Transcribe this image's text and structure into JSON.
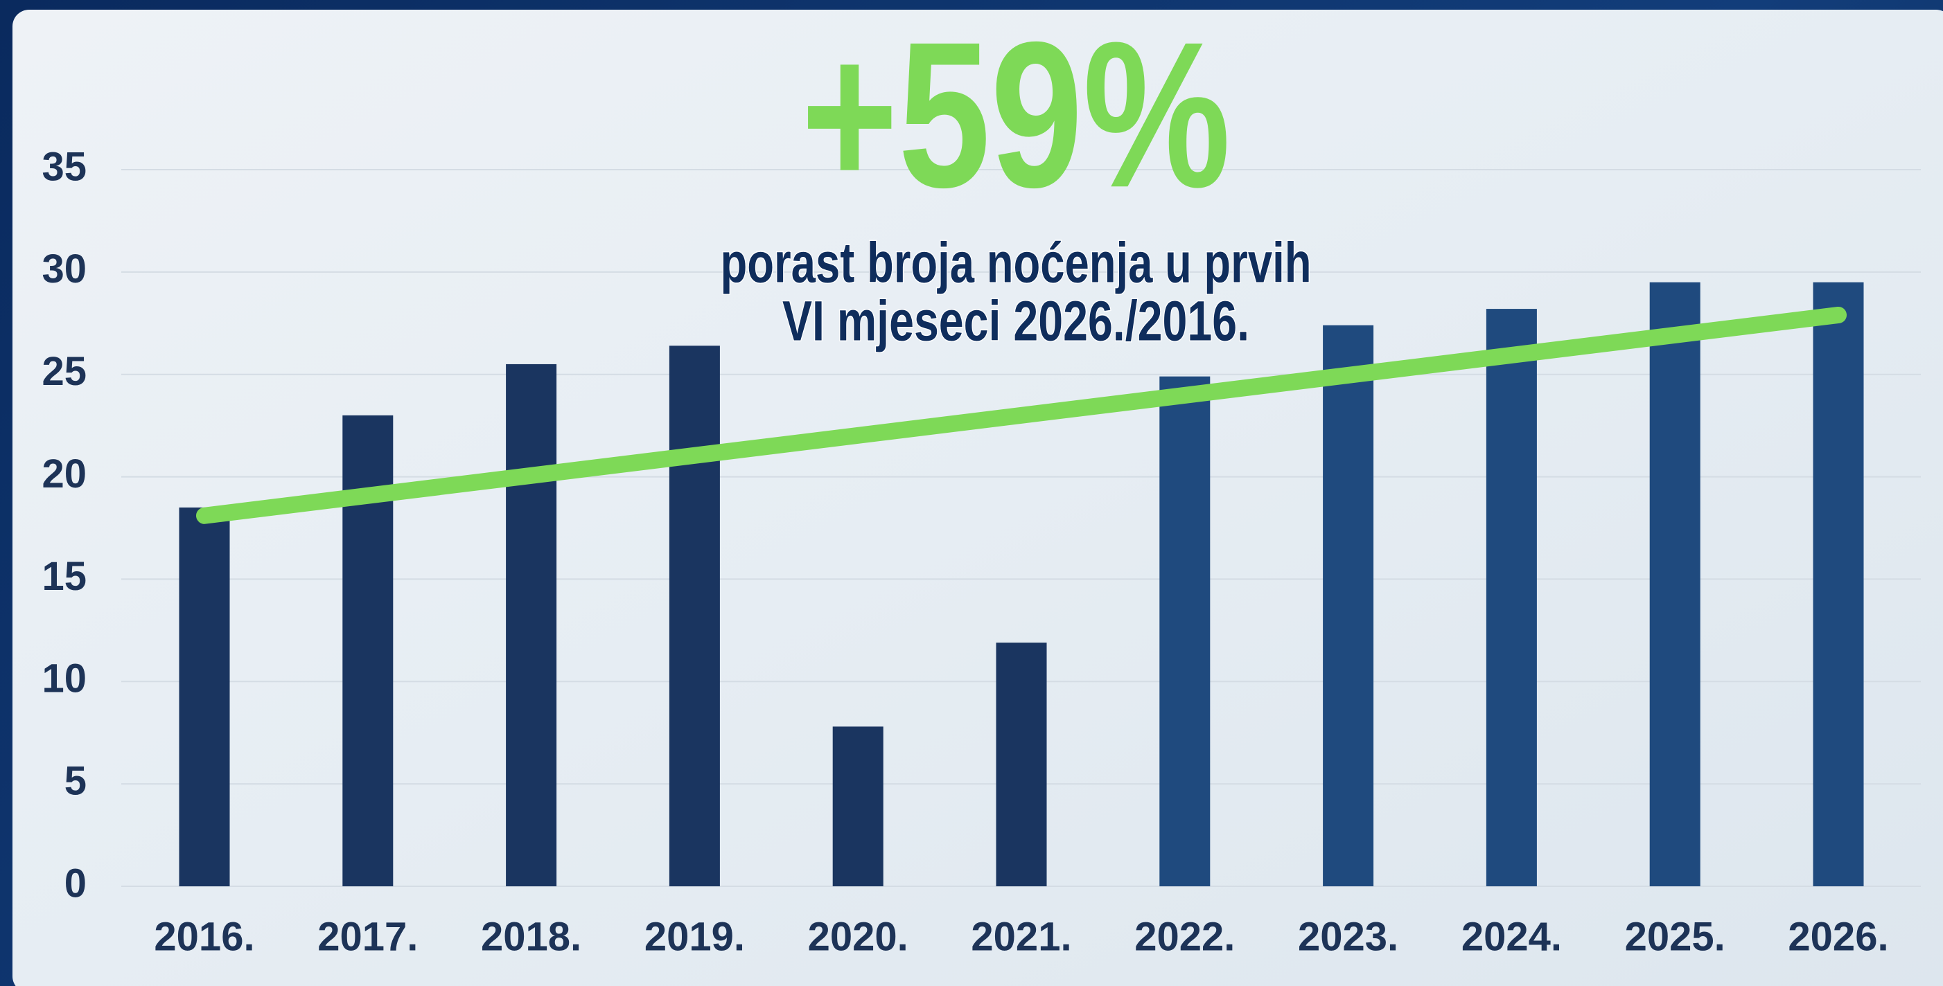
{
  "chart_data": {
    "type": "bar",
    "annotation": "+59%",
    "subtitle": [
      "porast broja noćenja u prvih",
      "VI mjeseci 2026./2016."
    ],
    "categories": [
      "2016.",
      "2017.",
      "2018.",
      "2019.",
      "2020.",
      "2021.",
      "2022.",
      "2023.",
      "2024.",
      "2025.",
      "2026."
    ],
    "values": [
      18.5,
      23,
      25.5,
      26.4,
      7.8,
      11.9,
      24.9,
      27.4,
      28.2,
      29.5,
      29.5
    ],
    "colors": [
      "#1a3560",
      "#1a3560",
      "#1a3560",
      "#1a3560",
      "#1a3560",
      "#1a3560",
      "#1f4a7e",
      "#1f4a7e",
      "#1f4a7e",
      "#1f4a7e",
      "#1f4a7e"
    ],
    "trend_values": [
      18.1,
      27.9
    ],
    "trend_color": "#7ed957",
    "ylim": [
      0,
      35
    ],
    "yticks": [
      0,
      5,
      10,
      15,
      20,
      25,
      30,
      35
    ],
    "grid": true
  }
}
